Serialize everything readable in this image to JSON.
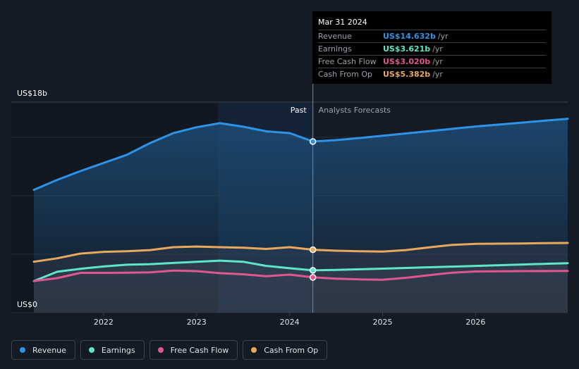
{
  "chart_data": {
    "type": "area",
    "ylabel_top": "US$18b",
    "ylabel_bottom": "US$0",
    "ylim": [
      0,
      18
    ],
    "xlim": [
      2021.25,
      2026.99
    ],
    "x_ticks": [
      2022,
      2023,
      2024,
      2025,
      2026
    ],
    "x_tick_labels": [
      "2022",
      "2023",
      "2024",
      "2025",
      "2026"
    ],
    "past_label": "Past",
    "forecast_label": "Analysts Forecasts",
    "cutoff_x": 2024.25,
    "highlight_start_x": 2023.23,
    "series": [
      {
        "name": "Revenue",
        "color": "#2e93e6",
        "x": [
          2021.25,
          2021.5,
          2021.75,
          2022.0,
          2022.25,
          2022.5,
          2022.75,
          2023.0,
          2023.25,
          2023.5,
          2023.75,
          2024.0,
          2024.25,
          2024.5,
          2024.75,
          2025.0,
          2025.25,
          2025.5,
          2025.75,
          2026.0,
          2026.25,
          2026.5,
          2026.75,
          2026.99
        ],
        "values": [
          10.5,
          11.35,
          12.1,
          12.8,
          13.5,
          14.5,
          15.35,
          15.85,
          16.2,
          15.9,
          15.5,
          15.35,
          14.632,
          14.75,
          14.93,
          15.12,
          15.32,
          15.52,
          15.72,
          15.92,
          16.08,
          16.25,
          16.42,
          16.57
        ]
      },
      {
        "name": "Earnings",
        "color": "#5ee6c7",
        "x": [
          2021.25,
          2021.5,
          2021.75,
          2022.0,
          2022.25,
          2022.5,
          2022.75,
          2023.0,
          2023.25,
          2023.5,
          2023.75,
          2024.0,
          2024.25,
          2024.5,
          2024.75,
          2025.0,
          2025.25,
          2025.5,
          2025.75,
          2026.0,
          2026.25,
          2026.5,
          2026.75,
          2026.99
        ],
        "values": [
          2.7,
          3.5,
          3.75,
          3.95,
          4.1,
          4.15,
          4.25,
          4.35,
          4.45,
          4.35,
          4.0,
          3.8,
          3.621,
          3.66,
          3.71,
          3.76,
          3.82,
          3.88,
          3.94,
          4.0,
          4.06,
          4.12,
          4.18,
          4.23
        ]
      },
      {
        "name": "Free Cash Flow",
        "color": "#e0578f",
        "x": [
          2021.25,
          2021.5,
          2021.75,
          2022.0,
          2022.25,
          2022.5,
          2022.75,
          2023.0,
          2023.25,
          2023.5,
          2023.75,
          2024.0,
          2024.25,
          2024.5,
          2024.75,
          2025.0,
          2025.25,
          2025.5,
          2025.75,
          2026.0,
          2026.25,
          2026.5,
          2026.75,
          2026.99
        ],
        "values": [
          2.7,
          2.95,
          3.4,
          3.4,
          3.42,
          3.45,
          3.6,
          3.55,
          3.38,
          3.28,
          3.12,
          3.25,
          3.02,
          2.9,
          2.85,
          2.82,
          2.98,
          3.2,
          3.42,
          3.52,
          3.54,
          3.55,
          3.56,
          3.57
        ]
      },
      {
        "name": "Cash From Op",
        "color": "#e8a95c",
        "x": [
          2021.25,
          2021.5,
          2021.75,
          2022.0,
          2022.25,
          2022.5,
          2022.75,
          2023.0,
          2023.25,
          2023.5,
          2023.75,
          2024.0,
          2024.25,
          2024.5,
          2024.75,
          2025.0,
          2025.25,
          2025.5,
          2025.75,
          2026.0,
          2026.25,
          2026.5,
          2026.75,
          2026.99
        ],
        "values": [
          4.35,
          4.65,
          5.05,
          5.2,
          5.25,
          5.35,
          5.6,
          5.65,
          5.6,
          5.55,
          5.45,
          5.6,
          5.382,
          5.3,
          5.25,
          5.22,
          5.35,
          5.58,
          5.8,
          5.88,
          5.9,
          5.92,
          5.94,
          5.96
        ]
      }
    ],
    "tooltip": {
      "date": "Mar 31 2024",
      "rows": [
        {
          "name": "Revenue",
          "value": "US$14.632b",
          "unit": "/yr",
          "color": "#2e93e6"
        },
        {
          "name": "Earnings",
          "value": "US$3.621b",
          "unit": "/yr",
          "color": "#5ee6c7"
        },
        {
          "name": "Free Cash Flow",
          "value": "US$3.020b",
          "unit": "/yr",
          "color": "#e0578f"
        },
        {
          "name": "Cash From Op",
          "value": "US$5.382b",
          "unit": "/yr",
          "color": "#e8a95c"
        }
      ]
    },
    "grid": true,
    "legend_placement": "bottom"
  },
  "legend": [
    {
      "label": "Revenue",
      "color": "#2e93e6"
    },
    {
      "label": "Earnings",
      "color": "#5ee6c7"
    },
    {
      "label": "Free Cash Flow",
      "color": "#e0578f"
    },
    {
      "label": "Cash From Op",
      "color": "#e8a95c"
    }
  ]
}
